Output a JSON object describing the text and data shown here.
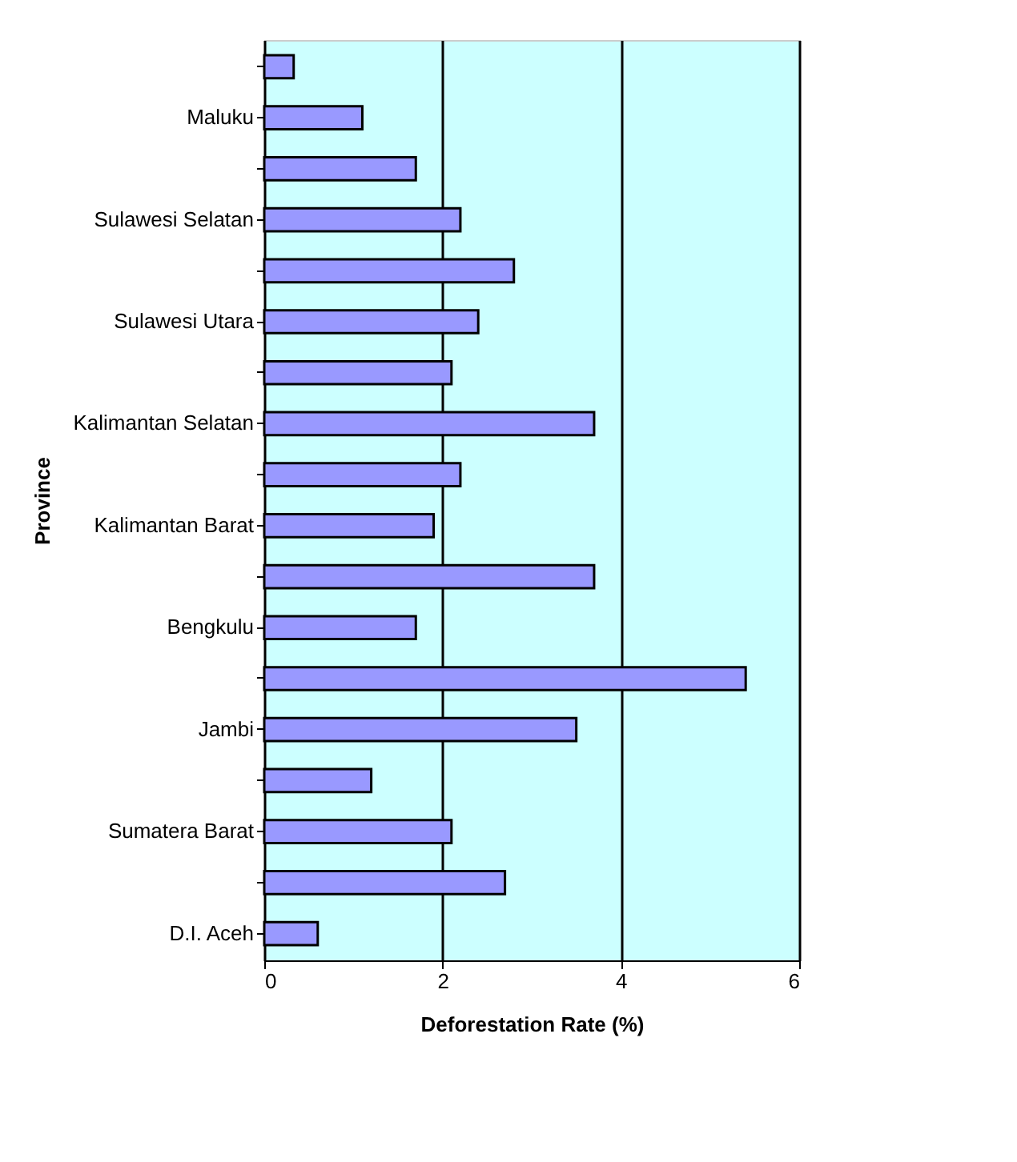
{
  "chart_data": {
    "type": "bar",
    "orientation": "horizontal",
    "xlabel": "Deforestation Rate (%)",
    "ylabel": "Province",
    "categories": [
      null,
      "Maluku",
      null,
      "Sulawesi Selatan",
      null,
      "Sulawesi Utara",
      null,
      "Kalimantan Selatan",
      null,
      "Kalimantan Barat",
      null,
      "Bengkulu",
      null,
      "Jambi",
      null,
      "Sumatera Barat",
      null,
      "D.I. Aceh"
    ],
    "values": [
      0.33,
      1.1,
      1.7,
      2.2,
      2.8,
      2.4,
      2.1,
      3.7,
      2.2,
      1.9,
      3.7,
      1.7,
      5.4,
      3.5,
      1.2,
      2.1,
      2.7,
      0.6
    ],
    "color": "#9999ff",
    "xlim": [
      0,
      6
    ],
    "xticks": [
      0,
      2,
      4,
      6
    ],
    "grid": "x"
  }
}
